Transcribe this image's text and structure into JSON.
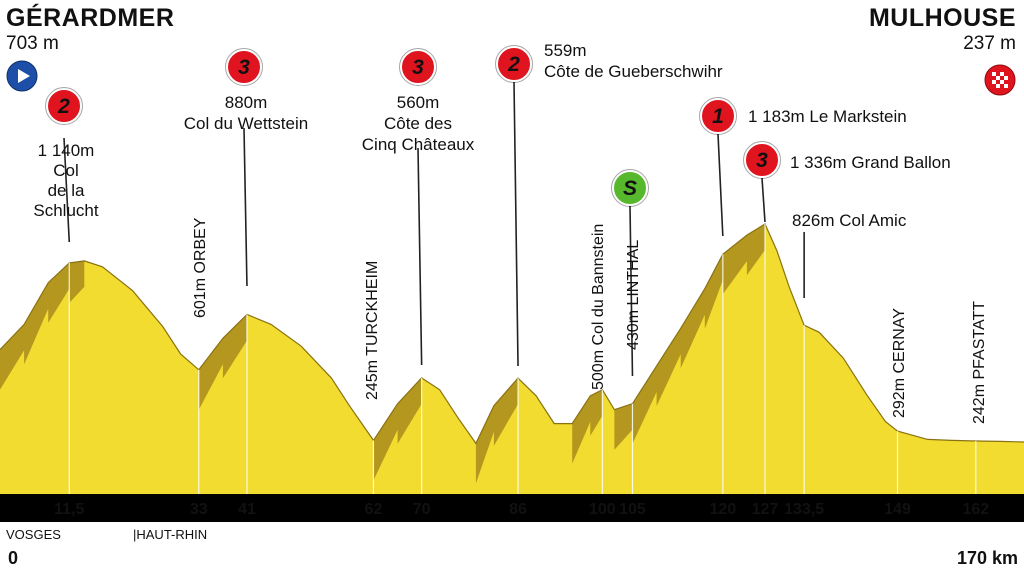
{
  "start": {
    "name": "GÉRARDMER",
    "altitude": "703 m",
    "km": "0"
  },
  "finish": {
    "name": "MULHOUSE",
    "altitude": "237 m",
    "km": "170 km"
  },
  "departments": [
    {
      "name": "VOSGES"
    },
    {
      "name": "|HAUT-RHIN"
    }
  ],
  "start_icon": "play-triangle-icon",
  "finish_icon": "checkered-flag-icon",
  "colors": {
    "terrain": "#f2dc2f",
    "terrain_shadow": "#a98b1c",
    "axis_bar": "#000000",
    "climb_badge": "#e0141e",
    "sprint_badge": "#58b82d"
  },
  "chart_data": {
    "type": "area",
    "x_unit": "km",
    "xlim": [
      0,
      170
    ],
    "ticks": [
      {
        "km": 11.5,
        "label": "11,5"
      },
      {
        "km": 33,
        "label": "33"
      },
      {
        "km": 41,
        "label": "41"
      },
      {
        "km": 62,
        "label": "62"
      },
      {
        "km": 70,
        "label": "70"
      },
      {
        "km": 86,
        "label": "86"
      },
      {
        "km": 100,
        "label": "100"
      },
      {
        "km": 105,
        "label": "105"
      },
      {
        "km": 120,
        "label": "120"
      },
      {
        "km": 127,
        "label": "127"
      },
      {
        "km": 133.5,
        "label": "133,5"
      },
      {
        "km": 149,
        "label": "149"
      },
      {
        "km": 162,
        "label": "162"
      }
    ],
    "profile": [
      [
        0,
        703
      ],
      [
        4,
        830
      ],
      [
        8,
        1040
      ],
      [
        11.5,
        1140
      ],
      [
        14,
        1150
      ],
      [
        17,
        1120
      ],
      [
        22,
        1000
      ],
      [
        27,
        820
      ],
      [
        30,
        680
      ],
      [
        33,
        601
      ],
      [
        37,
        760
      ],
      [
        41,
        880
      ],
      [
        45,
        830
      ],
      [
        50,
        720
      ],
      [
        55,
        560
      ],
      [
        58,
        420
      ],
      [
        62,
        245
      ],
      [
        66,
        430
      ],
      [
        70,
        560
      ],
      [
        73,
        500
      ],
      [
        76,
        360
      ],
      [
        79,
        230
      ],
      [
        82,
        420
      ],
      [
        86,
        559
      ],
      [
        89,
        470
      ],
      [
        92,
        330
      ],
      [
        95,
        330
      ],
      [
        98,
        470
      ],
      [
        100,
        500
      ],
      [
        102,
        400
      ],
      [
        105,
        430
      ],
      [
        109,
        620
      ],
      [
        113,
        810
      ],
      [
        117,
        1010
      ],
      [
        120,
        1183
      ],
      [
        124,
        1280
      ],
      [
        127,
        1336
      ],
      [
        129,
        1200
      ],
      [
        131,
        1020
      ],
      [
        133.5,
        826
      ],
      [
        136,
        790
      ],
      [
        140,
        660
      ],
      [
        144,
        470
      ],
      [
        147,
        340
      ],
      [
        149,
        292
      ],
      [
        154,
        250
      ],
      [
        158,
        245
      ],
      [
        162,
        242
      ],
      [
        166,
        240
      ],
      [
        170,
        237
      ]
    ],
    "places": [
      {
        "km": 11.5,
        "alt": 1140,
        "label": "1 140m\nCol\nde la\nSchlucht",
        "badge": "2",
        "badge_type": "climb"
      },
      {
        "km": 33,
        "alt": 601,
        "label": "601m ORBEY"
      },
      {
        "km": 41,
        "alt": 880,
        "label": "880m\nCol du Wettstein",
        "badge": "3",
        "badge_type": "climb"
      },
      {
        "km": 62,
        "alt": 245,
        "label": "245m TURCKHEIM"
      },
      {
        "km": 70,
        "alt": 560,
        "label": "560m\nCôte des\nCinq Châteaux",
        "badge": "3",
        "badge_type": "climb"
      },
      {
        "km": 86,
        "alt": 559,
        "label": "559m\nCôte de Gueberschwihr",
        "badge": "2",
        "badge_type": "climb"
      },
      {
        "km": 100,
        "alt": 500,
        "label": "500m Col du Bannstein"
      },
      {
        "km": 105,
        "alt": 430,
        "label": "430m LINTHAL",
        "badge": "S",
        "badge_type": "sprint"
      },
      {
        "km": 120,
        "alt": 1183,
        "label": "1 183m Le Markstein",
        "badge": "1",
        "badge_type": "climb"
      },
      {
        "km": 127,
        "alt": 1336,
        "label": "1 336m  Grand Ballon",
        "badge": "3",
        "badge_type": "climb"
      },
      {
        "km": 133.5,
        "alt": 826,
        "label": "826m Col Amic"
      },
      {
        "km": 149,
        "alt": 292,
        "label": "292m CERNAY"
      },
      {
        "km": 162,
        "alt": 242,
        "label": "242m PFASTATT"
      }
    ]
  }
}
